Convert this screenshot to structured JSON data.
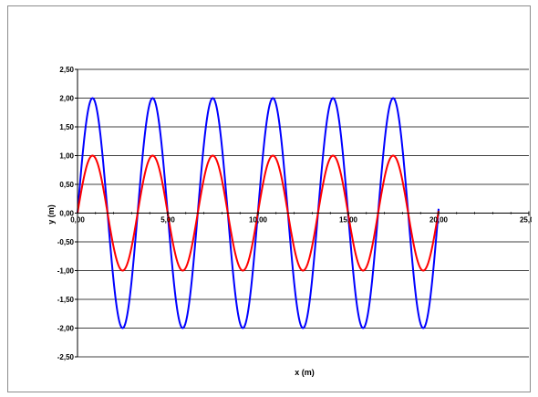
{
  "chart_data": {
    "type": "line",
    "title": "",
    "xlabel": "x (m)",
    "ylabel": "y (m)",
    "xlim": [
      0,
      25
    ],
    "ylim": [
      -2.5,
      2.5
    ],
    "x_ticks": [
      "0,00",
      "5,00",
      "10,00",
      "15,00",
      "20,00",
      "25,00"
    ],
    "y_ticks": [
      "2,50",
      "2,00",
      "1,50",
      "1,00",
      "0,50",
      "0,00",
      "-0,50",
      "-1,00",
      "-1,50",
      "-2,00",
      "-2,50"
    ],
    "grid": "horizontal",
    "legend": "none",
    "x_range_data": [
      0,
      20
    ],
    "series": [
      {
        "amplitude": 2.0,
        "wavelength": 3.33,
        "color": "#0000ff",
        "function": "y = 2·sin(2πx/3.33)"
      },
      {
        "amplitude": 1.0,
        "wavelength": 3.33,
        "color": "#ff0000",
        "function": "y = 1·sin(2πx/3.33)"
      }
    ]
  }
}
